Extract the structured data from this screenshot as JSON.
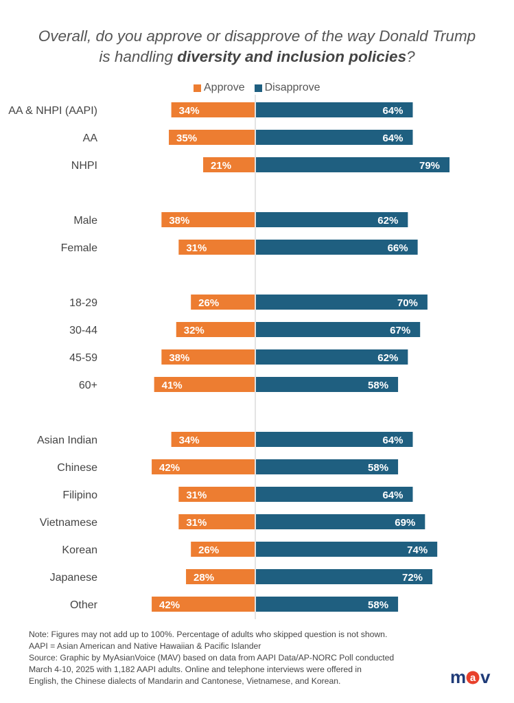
{
  "title": {
    "line1": "Overall, do you approve or disapprove of the way Donald Trump",
    "line2_prefix": "is handling ",
    "line2_bold": "diversity and inclusion policies",
    "line2_suffix": "?"
  },
  "chart_data": {
    "type": "bar",
    "orientation": "horizontal-diverging",
    "legend_placement": "top",
    "grid": false,
    "series": [
      {
        "name": "Approve",
        "color": "#ED7D31"
      },
      {
        "name": "Disapprove",
        "color": "#1F5F80"
      }
    ],
    "groups": [
      [
        {
          "label": "AA & NHPI (AAPI)",
          "approve": 34,
          "disapprove": 64,
          "approve_label": "34%",
          "disapprove_label": "64%"
        },
        {
          "label": "AA",
          "approve": 35,
          "disapprove": 64,
          "approve_label": "35%",
          "disapprove_label": "64%"
        },
        {
          "label": "NHPI",
          "approve": 21,
          "disapprove": 79,
          "approve_label": "21%",
          "disapprove_label": "79%"
        }
      ],
      [
        {
          "label": "Male",
          "approve": 38,
          "disapprove": 62,
          "approve_label": "38%",
          "disapprove_label": "62%"
        },
        {
          "label": "Female",
          "approve": 31,
          "disapprove": 66,
          "approve_label": "31%",
          "disapprove_label": "66%"
        }
      ],
      [
        {
          "label": "18-29",
          "approve": 26,
          "disapprove": 70,
          "approve_label": "26%",
          "disapprove_label": "70%"
        },
        {
          "label": "30-44",
          "approve": 32,
          "disapprove": 67,
          "approve_label": "32%",
          "disapprove_label": "67%"
        },
        {
          "label": "45-59",
          "approve": 38,
          "disapprove": 62,
          "approve_label": "38%",
          "disapprove_label": "62%"
        },
        {
          "label": "60+",
          "approve": 41,
          "disapprove": 58,
          "approve_label": "41%",
          "disapprove_label": "58%"
        }
      ],
      [
        {
          "label": "Asian Indian",
          "approve": 34,
          "disapprove": 64,
          "approve_label": "34%",
          "disapprove_label": "64%"
        },
        {
          "label": "Chinese",
          "approve": 42,
          "disapprove": 58,
          "approve_label": "42%",
          "disapprove_label": "58%"
        },
        {
          "label": "Filipino",
          "approve": 31,
          "disapprove": 64,
          "approve_label": "31%",
          "disapprove_label": "64%"
        },
        {
          "label": "Vietnamese",
          "approve": 31,
          "disapprove": 69,
          "approve_label": "31%",
          "disapprove_label": "69%"
        },
        {
          "label": "Korean",
          "approve": 26,
          "disapprove": 74,
          "approve_label": "26%",
          "disapprove_label": "74%"
        },
        {
          "label": "Japanese",
          "approve": 28,
          "disapprove": 72,
          "approve_label": "28%",
          "disapprove_label": "72%"
        },
        {
          "label": "Other",
          "approve": 42,
          "disapprove": 58,
          "approve_label": "42%",
          "disapprove_label": "58%"
        }
      ]
    ]
  },
  "notes": [
    "Note: Figures may not add up to 100%. Percentage of adults who skipped  question is not shown.",
    "AAPI = Asian American and Native Hawaiian & Pacific Islander",
    "Source:  Graphic by MyAsianVoice (MAV) based on data from AAPI Data/AP-NORC Poll conducted",
    "March 4-10, 2025 with 1,182 AAPI adults. Online and  telephone interviews were offered in",
    "English, the Chinese dialects of Mandarin and Cantonese, Vietnamese, and Korean."
  ],
  "logo": {
    "text_m": "m",
    "text_a": "a",
    "text_v": "v",
    "color_main": "#1F3B78",
    "color_accent": "#E8402B"
  }
}
